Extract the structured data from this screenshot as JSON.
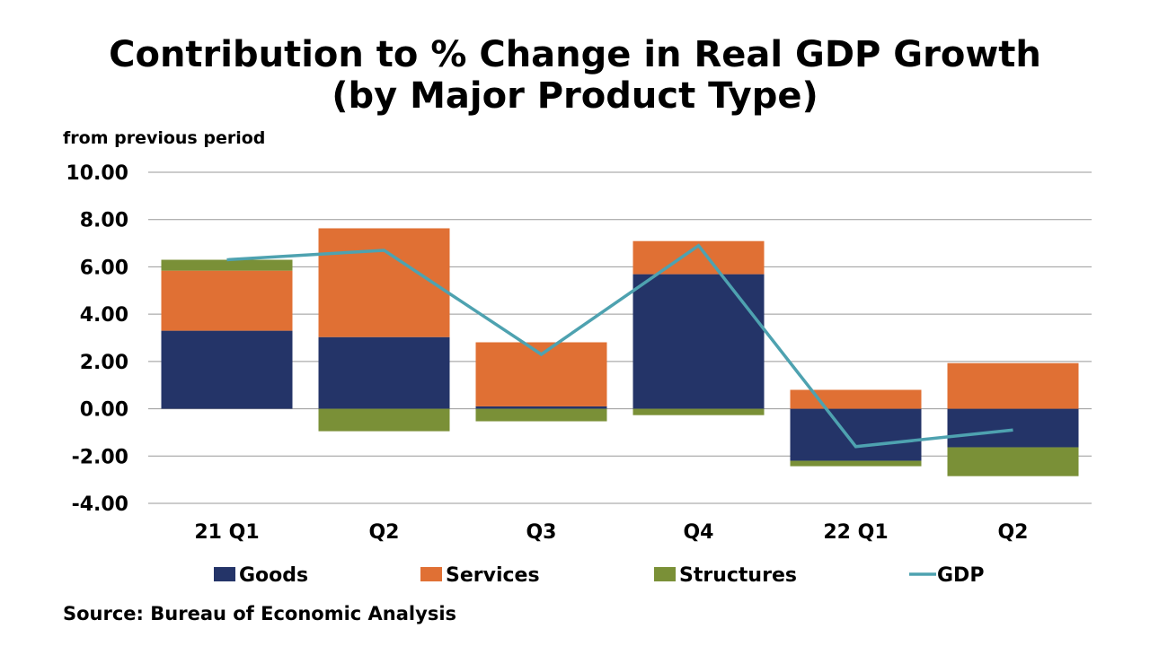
{
  "chart_data": {
    "type": "bar",
    "stacked": true,
    "title": "Contribution to % Change in Real GDP Growth",
    "subtitle": "(by Major Product Type)",
    "ylabel": "from previous period",
    "source": "Source: Bureau of Economic Analysis",
    "categories": [
      "21 Q1",
      "Q2",
      "Q3",
      "Q4",
      "22 Q1",
      "Q2"
    ],
    "ylim": [
      -4,
      10
    ],
    "yticks": [
      "10.00",
      "8.00",
      "6.00",
      "4.00",
      "2.00",
      "0.00",
      "-2.00",
      "-4.00"
    ],
    "grid": true,
    "legend": "bottom",
    "series": [
      {
        "name": "Goods",
        "type": "bar",
        "color": "#243468",
        "values": [
          3.3,
          3.03,
          0.1,
          5.69,
          -2.2,
          -1.63
        ]
      },
      {
        "name": "Services",
        "type": "bar",
        "color": "#E07034",
        "values": [
          2.54,
          4.6,
          2.71,
          1.4,
          0.8,
          1.93
        ]
      },
      {
        "name": "Structures",
        "type": "bar",
        "color": "#7A9037",
        "values": [
          0.46,
          -0.95,
          -0.53,
          -0.27,
          -0.23,
          -1.22
        ]
      },
      {
        "name": "GDP",
        "type": "line",
        "color": "#4EA2B0",
        "values": [
          6.3,
          6.7,
          2.3,
          6.9,
          -1.6,
          -0.9
        ]
      }
    ]
  }
}
